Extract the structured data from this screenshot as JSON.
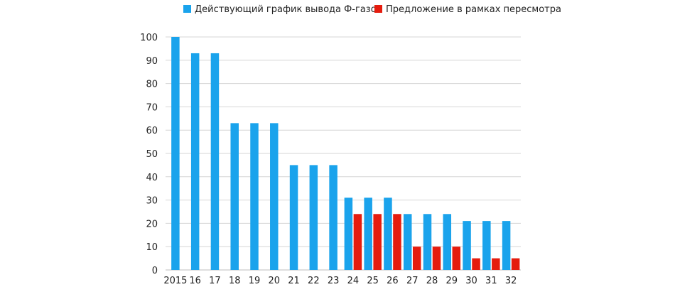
{
  "chart_data": {
    "type": "bar",
    "categories": [
      "2015",
      "16",
      "17",
      "18",
      "19",
      "20",
      "21",
      "22",
      "23",
      "24",
      "25",
      "26",
      "27",
      "28",
      "29",
      "30",
      "31",
      "32"
    ],
    "series": [
      {
        "name": "Действующий график вывода Ф-газов",
        "color": "#1aa3ec",
        "values": [
          100,
          93,
          93,
          63,
          63,
          63,
          45,
          45,
          45,
          31,
          31,
          31,
          24,
          24,
          24,
          21,
          21,
          21
        ]
      },
      {
        "name": "Предложение в рамках пересмотра",
        "color": "#e51c0e",
        "values": [
          null,
          null,
          null,
          null,
          null,
          null,
          null,
          null,
          null,
          24,
          24,
          24,
          10,
          10,
          10,
          5,
          5,
          5
        ]
      }
    ],
    "ylim": [
      0,
      100
    ],
    "yticks": [
      0,
      10,
      20,
      30,
      40,
      50,
      60,
      70,
      80,
      90,
      100
    ],
    "grid": true,
    "legend": "top"
  }
}
